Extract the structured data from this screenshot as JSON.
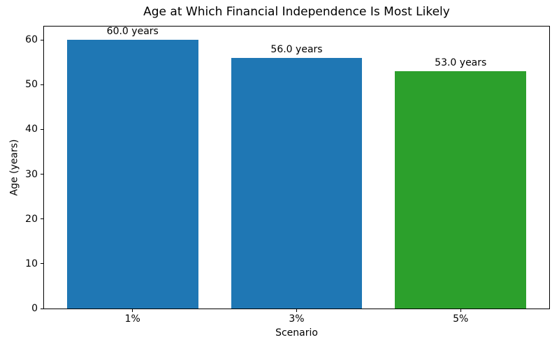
{
  "chart_data": {
    "type": "bar",
    "title": "Age at Which Financial Independence Is Most Likely",
    "xlabel": "Scenario",
    "ylabel": "Age (years)",
    "categories": [
      "1%",
      "3%",
      "5%"
    ],
    "values": [
      60.0,
      56.0,
      53.0
    ],
    "bar_labels": [
      "60.0 years",
      "56.0 years",
      "53.0 years"
    ],
    "bar_colors": [
      "#1f77b4",
      "#1f77b4",
      "#2ca02c"
    ],
    "ylim": [
      0,
      63
    ],
    "yticks": [
      0,
      10,
      20,
      30,
      40,
      50,
      60
    ],
    "grid": false,
    "bar_width_fraction": 0.8,
    "spine_color": "#000000",
    "background_color": "#ffffff"
  }
}
